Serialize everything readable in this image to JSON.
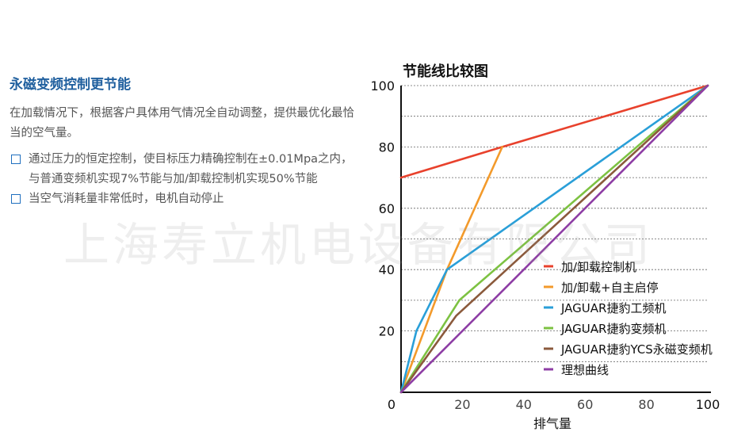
{
  "section": {
    "heading": "永磁变频控制更节能",
    "intro": "在加载情况下，根据客户具体用气情况全自动调整，提供最优化最恰当的空气量。",
    "features": [
      "通过压力的恒定控制，使目标压力精确控制在±0.01Mpa之内，与普通变频机实现7%节能与加/卸载控制机实现50%节能",
      "当空气消耗量非常低时，电机自动停止"
    ]
  },
  "watermark": "上海寿立机电设备有限公司",
  "chart_data": {
    "type": "line",
    "title": "节能线比较图",
    "xlabel": "排气量",
    "ylabel": "",
    "xlim": [
      0,
      100
    ],
    "ylim": [
      0,
      100
    ],
    "x_ticks": [
      0,
      20,
      40,
      60,
      80,
      100
    ],
    "y_ticks": [
      20,
      40,
      60,
      80,
      100
    ],
    "grid": "horizontal dotted every 10",
    "legend_position": "bottom-right",
    "series": [
      {
        "name": "加/卸载控制机",
        "color": "#e8412c",
        "points": [
          [
            0,
            70
          ],
          [
            33,
            80
          ],
          [
            100,
            100
          ]
        ]
      },
      {
        "name": "加/卸载+自主启停",
        "color": "#f39a2b",
        "points": [
          [
            0,
            0
          ],
          [
            15,
            40
          ],
          [
            33,
            80
          ]
        ]
      },
      {
        "name": "JAGUAR捷豹工频机",
        "color": "#2a9fd8",
        "points": [
          [
            0,
            0
          ],
          [
            5,
            20
          ],
          [
            15,
            40
          ],
          [
            100,
            100
          ]
        ]
      },
      {
        "name": "JAGUAR捷豹变频机",
        "color": "#7dc242",
        "points": [
          [
            0,
            0
          ],
          [
            19,
            30
          ],
          [
            100,
            100
          ]
        ]
      },
      {
        "name": "JAGUAR捷豹YCS永磁变频机",
        "color": "#8b5a3c",
        "points": [
          [
            0,
            0
          ],
          [
            18,
            25
          ],
          [
            100,
            100
          ]
        ]
      },
      {
        "name": "理想曲线",
        "color": "#8e3ea5",
        "points": [
          [
            0,
            0
          ],
          [
            100,
            100
          ]
        ]
      }
    ]
  }
}
